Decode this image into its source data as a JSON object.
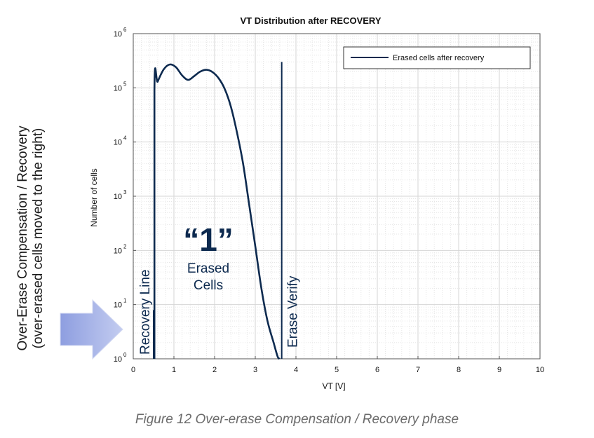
{
  "chart_data": {
    "type": "line",
    "title": "VT Distribution after RECOVERY",
    "xlabel": "VT [V]",
    "ylabel": "Number of cells",
    "xlim": [
      0,
      10
    ],
    "ylim_log_exponent": [
      0,
      6
    ],
    "x_ticks": [
      "0",
      "1",
      "2",
      "3",
      "4",
      "5",
      "6",
      "7",
      "8",
      "9",
      "10"
    ],
    "y_ticks": [
      {
        "base": "10",
        "exp": "0"
      },
      {
        "base": "10",
        "exp": "1"
      },
      {
        "base": "10",
        "exp": "2"
      },
      {
        "base": "10",
        "exp": "3"
      },
      {
        "base": "10",
        "exp": "4"
      },
      {
        "base": "10",
        "exp": "5"
      },
      {
        "base": "10",
        "exp": "6"
      }
    ],
    "grid": true,
    "legend": {
      "position": "top-right",
      "entries": [
        "Erased cells after recovery"
      ]
    },
    "series": [
      {
        "name": "Erased cells after recovery",
        "color": "#0d2a4f",
        "x": [
          0.52,
          0.52,
          0.6,
          0.75,
          0.9,
          1.05,
          1.2,
          1.35,
          1.5,
          1.65,
          1.8,
          1.95,
          2.1,
          2.25,
          2.4,
          2.55,
          2.7,
          2.85,
          3.0,
          3.15,
          3.3,
          3.45,
          3.55,
          3.6
        ],
        "y": [
          1,
          90000,
          130000,
          220000,
          270000,
          240000,
          170000,
          140000,
          165000,
          200000,
          215000,
          195000,
          150000,
          95000,
          45000,
          15000,
          4000,
          700,
          120,
          20,
          5,
          2,
          1.1,
          1
        ]
      }
    ],
    "vlines": [
      {
        "x": 0.5,
        "label": "Recovery Line"
      },
      {
        "x": 3.65,
        "label": "Erase Verify",
        "y_top": 300000
      }
    ],
    "annotations": {
      "big_label": "“1”",
      "sub_label_line1": "Erased",
      "sub_label_line2": "Cells"
    }
  },
  "side_text": {
    "line1": "Over-Erase Compensation / Recovery",
    "line2": "(over-erased cells moved to the right)"
  },
  "arrow_color": "#a7b4e6",
  "caption": "Figure 12 Over-erase Compensation / Recovery phase"
}
